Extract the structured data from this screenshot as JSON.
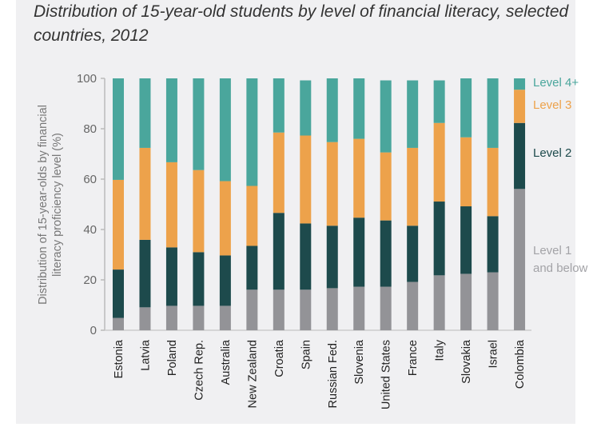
{
  "chart_data": {
    "type": "bar",
    "stacked": true,
    "title": "Distribution of 15-year-old students by level of financial literacy, selected countries, 2012",
    "ylabel_lines": [
      "Distribution of 15-year-olds by financial",
      "literacy proficiency level (%)"
    ],
    "xlabel": "",
    "ylim": [
      0,
      100
    ],
    "yticks": [
      0,
      20,
      40,
      60,
      80,
      100
    ],
    "grid": false,
    "legend_position": "right",
    "categories": [
      "Estonia",
      "Latvia",
      "Poland",
      "Czech Rep.",
      "Australia",
      "New Zealand",
      "Croatia",
      "Spain",
      "Russian Fed.",
      "Slovenia",
      "United States",
      "France",
      "Italy",
      "Slovakia",
      "Israel",
      "Colombia"
    ],
    "series": [
      {
        "name": "Level 1 and below",
        "label_lines": [
          "Level 1",
          "and below"
        ],
        "color": "#939397",
        "values": [
          4.9,
          9.1,
          9.7,
          9.7,
          9.7,
          16.1,
          16.1,
          16.1,
          16.7,
          17.3,
          17.3,
          19.2,
          21.8,
          22.4,
          23.0,
          56.1
        ]
      },
      {
        "name": "Level 2",
        "label_lines": [
          "Level 2"
        ],
        "color": "#1d4a4c",
        "values": [
          19.2,
          26.8,
          23.2,
          21.3,
          20.0,
          17.4,
          30.5,
          26.3,
          24.8,
          27.4,
          26.3,
          22.3,
          29.3,
          26.8,
          22.3,
          26.2
        ]
      },
      {
        "name": "Level 3",
        "label_lines": [
          "Level 3"
        ],
        "color": "#eda24b",
        "values": [
          35.6,
          36.5,
          33.8,
          32.6,
          29.5,
          23.8,
          31.9,
          34.9,
          33.2,
          31.3,
          27.0,
          30.9,
          31.2,
          27.4,
          27.1,
          13.2
        ]
      },
      {
        "name": "Level 4+",
        "label_lines": [
          "Level 4+"
        ],
        "color": "#4aa69c",
        "values": [
          40.3,
          27.6,
          33.3,
          36.4,
          40.8,
          42.7,
          21.5,
          21.9,
          25.3,
          24.0,
          28.6,
          26.8,
          16.9,
          23.4,
          27.6,
          4.5
        ]
      }
    ]
  }
}
